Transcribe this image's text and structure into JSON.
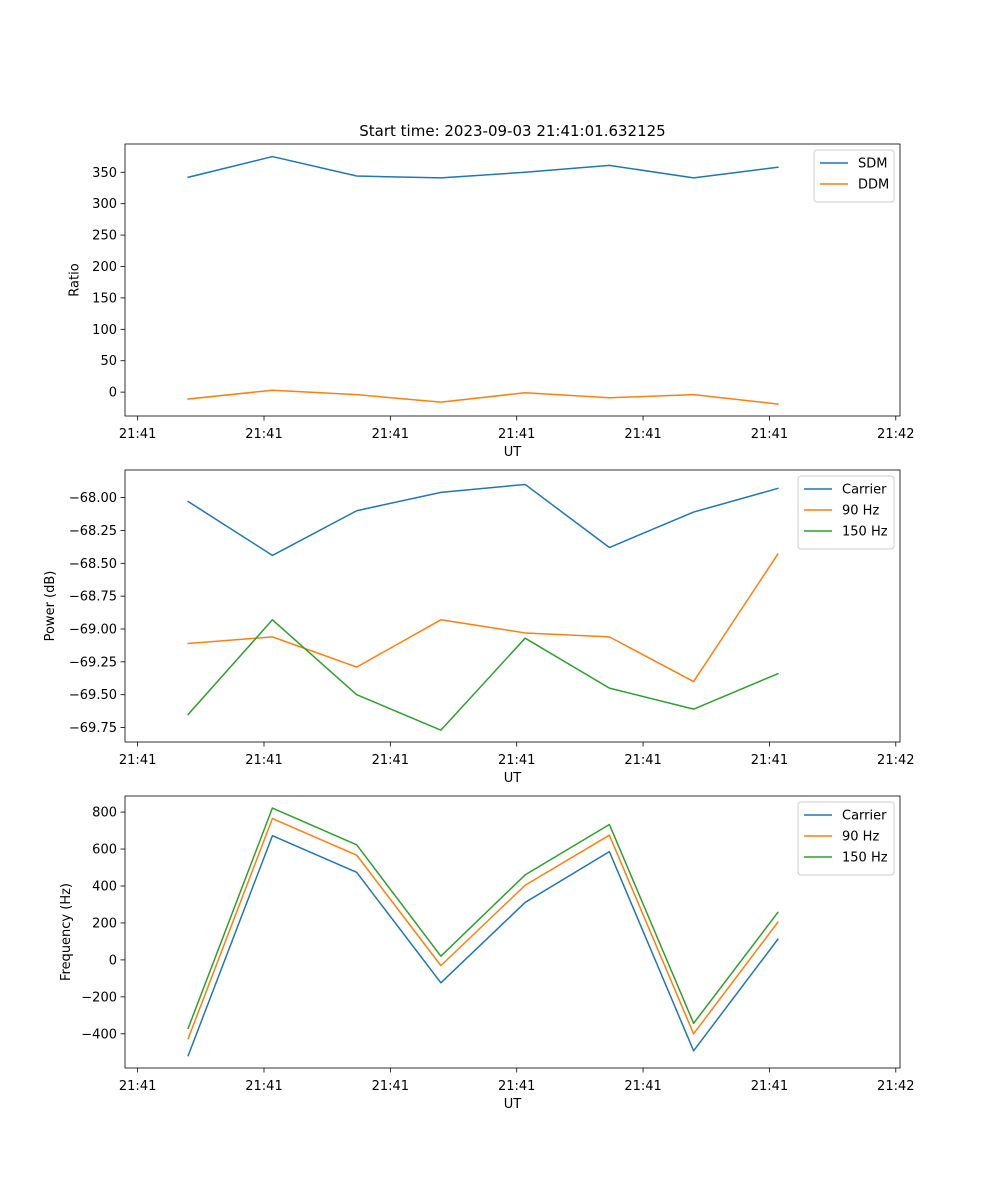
{
  "figure": {
    "title": "Start time: 2023-09-03 21:41:01.632125"
  },
  "chart_data": [
    {
      "type": "line",
      "title": "Start time: 2023-09-03 21:41:01.632125",
      "xlabel": "UT",
      "ylabel": "Ratio",
      "x": [
        0,
        1,
        2,
        3,
        4,
        5,
        6,
        7
      ],
      "xlim": [
        -0.75,
        8.45
      ],
      "x_ticks": [
        -0.6,
        0.9,
        2.4,
        3.9,
        5.4,
        6.9,
        8.4
      ],
      "x_tick_labels": [
        "21:41",
        "21:41",
        "21:41",
        "21:41",
        "21:41",
        "21:41",
        "21:42"
      ],
      "ylim": [
        -38,
        395
      ],
      "y_ticks": [
        0,
        50,
        100,
        150,
        200,
        250,
        300,
        350
      ],
      "y_tick_labels": [
        "0",
        "50",
        "100",
        "150",
        "200",
        "250",
        "300",
        "350"
      ],
      "legend": "top-right",
      "grid": false,
      "series": [
        {
          "name": "SDM",
          "color": "#1f77b4",
          "values": [
            342,
            375,
            344,
            341,
            350,
            361,
            341,
            358
          ]
        },
        {
          "name": "DDM",
          "color": "#ff7f0e",
          "values": [
            -11,
            3,
            -4,
            -16,
            -1,
            -9,
            -4,
            -19
          ]
        }
      ]
    },
    {
      "type": "line",
      "title": "",
      "xlabel": "UT",
      "ylabel": "Power (dB)",
      "x": [
        0,
        1,
        2,
        3,
        4,
        5,
        6,
        7
      ],
      "xlim": [
        -0.75,
        8.45
      ],
      "x_ticks": [
        -0.6,
        0.9,
        2.4,
        3.9,
        5.4,
        6.9,
        8.4
      ],
      "x_tick_labels": [
        "21:41",
        "21:41",
        "21:41",
        "21:41",
        "21:41",
        "21:41",
        "21:42"
      ],
      "ylim": [
        -69.86,
        -67.79
      ],
      "y_ticks": [
        -69.75,
        -69.5,
        -69.25,
        -69.0,
        -68.75,
        -68.5,
        -68.25,
        -68.0
      ],
      "y_tick_labels": [
        "−69.75",
        "−69.50",
        "−69.25",
        "−69.00",
        "−68.75",
        "−68.50",
        "−68.25",
        "−68.00"
      ],
      "legend": "top-right",
      "grid": false,
      "series": [
        {
          "name": "Carrier",
          "color": "#1f77b4",
          "values": [
            -68.03,
            -68.44,
            -68.1,
            -67.96,
            -67.9,
            -68.38,
            -68.11,
            -67.93
          ]
        },
        {
          "name": "90 Hz",
          "color": "#ff7f0e",
          "values": [
            -69.11,
            -69.06,
            -69.29,
            -68.93,
            -69.03,
            -69.06,
            -69.4,
            -68.43
          ]
        },
        {
          "name": "150 Hz",
          "color": "#2ca02c",
          "values": [
            -69.65,
            -68.93,
            -69.5,
            -69.77,
            -69.07,
            -69.45,
            -69.61,
            -69.34
          ]
        }
      ]
    },
    {
      "type": "line",
      "title": "",
      "xlabel": "UT",
      "ylabel": "Frequency (Hz)",
      "x": [
        0,
        1,
        2,
        3,
        4,
        5,
        6,
        7
      ],
      "xlim": [
        -0.75,
        8.45
      ],
      "x_ticks": [
        -0.6,
        0.9,
        2.4,
        3.9,
        5.4,
        6.9,
        8.4
      ],
      "x_tick_labels": [
        "21:41",
        "21:41",
        "21:41",
        "21:41",
        "21:41",
        "21:41",
        "21:42"
      ],
      "ylim": [
        -585,
        887
      ],
      "y_ticks": [
        -400,
        -200,
        0,
        200,
        400,
        600,
        800
      ],
      "y_tick_labels": [
        "−400",
        "−200",
        "0",
        "200",
        "400",
        "600",
        "800"
      ],
      "legend": "top-right",
      "grid": false,
      "series": [
        {
          "name": "Carrier",
          "color": "#1f77b4",
          "values": [
            -518,
            672,
            474,
            -124,
            311,
            586,
            -492,
            112
          ]
        },
        {
          "name": "90 Hz",
          "color": "#ff7f0e",
          "values": [
            -426,
            765,
            567,
            -31,
            404,
            675,
            -400,
            204
          ]
        },
        {
          "name": "150 Hz",
          "color": "#2ca02c",
          "values": [
            -370,
            822,
            623,
            20,
            460,
            733,
            -343,
            257
          ]
        }
      ]
    }
  ]
}
